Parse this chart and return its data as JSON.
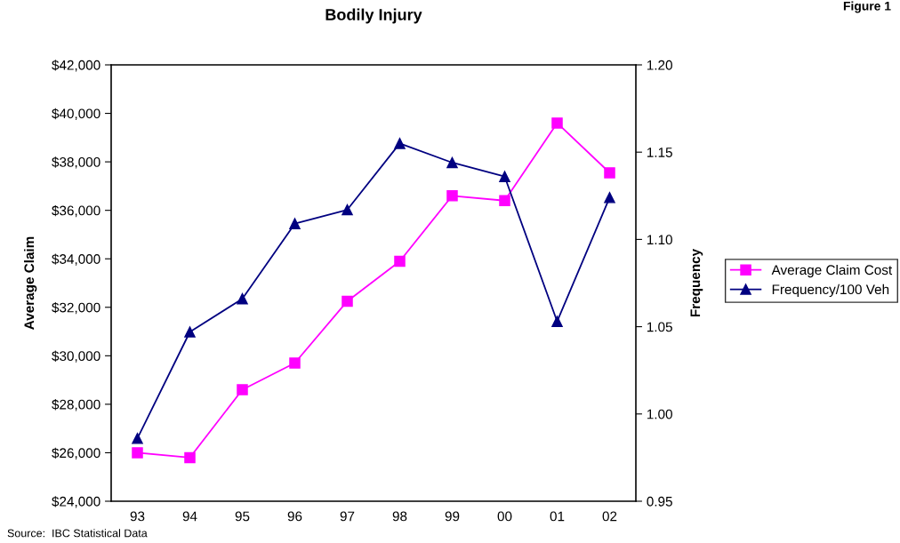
{
  "chart_data": {
    "type": "line",
    "title": "Bodily Injury",
    "subtitle": "Figure 1",
    "ylabel": "Average Claim",
    "y2label": "Frequency",
    "categories": [
      "93",
      "94",
      "95",
      "96",
      "97",
      "98",
      "99",
      "00",
      "01",
      "02"
    ],
    "series": [
      {
        "name": "Average Claim Cost",
        "color": "#ff00ff",
        "marker": "square",
        "values": [
          26000,
          25800,
          28600,
          29700,
          32250,
          33900,
          36600,
          36400,
          39600,
          37550
        ]
      },
      {
        "name": "Frequency/100 Veh",
        "color": "#000080",
        "marker": "triangle",
        "axis": "y2",
        "values": [
          0.986,
          1.047,
          1.066,
          1.109,
          1.117,
          1.155,
          1.144,
          1.136,
          1.053,
          1.124
        ]
      }
    ],
    "ylim": [
      24000,
      42000
    ],
    "yticks": [
      {
        "value": 24000,
        "label": "$24,000"
      },
      {
        "value": 26000,
        "label": "$26,000"
      },
      {
        "value": 28000,
        "label": "$28,000"
      },
      {
        "value": 30000,
        "label": "$30,000"
      },
      {
        "value": 32000,
        "label": "$32,000"
      },
      {
        "value": 34000,
        "label": "$34,000"
      },
      {
        "value": 36000,
        "label": "$36,000"
      },
      {
        "value": 38000,
        "label": "$38,000"
      },
      {
        "value": 40000,
        "label": "$40,000"
      },
      {
        "value": 42000,
        "label": "$42,000"
      }
    ],
    "y2lim": [
      0.95,
      1.2
    ],
    "y2ticks": [
      {
        "value": 0.95,
        "label": "0.95"
      },
      {
        "value": 1.0,
        "label": "1.00"
      },
      {
        "value": 1.05,
        "label": "1.05"
      },
      {
        "value": 1.1,
        "label": "1.10"
      },
      {
        "value": 1.15,
        "label": "1.15"
      },
      {
        "value": 1.2,
        "label": "1.20"
      }
    ],
    "grid": false,
    "legend": "right",
    "line_style": "solid",
    "annotations": [
      "Source:  IBC Statistical Data"
    ]
  }
}
